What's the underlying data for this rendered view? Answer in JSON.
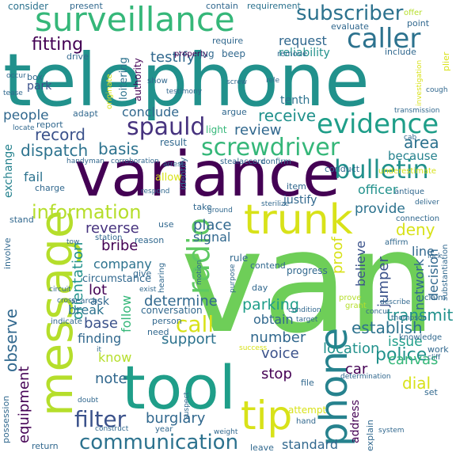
{
  "colors": {
    "purple": "#440154",
    "indigo": "#3b528b",
    "blue": "#31688e",
    "teal": "#21918c",
    "green": "#35b779",
    "lime": "#6ece58",
    "yellow": "#b5de2b",
    "pale": "#d8e219"
  },
  "words": [
    {
      "text": "telephone",
      "color": "#21918c"
    },
    {
      "text": "van",
      "color": "#6ece58"
    },
    {
      "text": "variance",
      "color": "#440154"
    },
    {
      "text": "tool",
      "color": "#1f9e89"
    },
    {
      "text": "message",
      "color": "#b5de2b"
    },
    {
      "text": "surveillance",
      "color": "#35b779"
    },
    {
      "text": "phone",
      "color": "#26828e"
    },
    {
      "text": "trunk",
      "color": "#d8e219"
    },
    {
      "text": "tip",
      "color": "#d8e219"
    },
    {
      "text": "caller",
      "color": "#2c728e"
    },
    {
      "text": "radio",
      "color": "#5ec962"
    },
    {
      "text": "screwdriver",
      "color": "#35b779"
    },
    {
      "text": "evidence",
      "color": "#1f9e89"
    },
    {
      "text": "spauld",
      "color": "#46327e"
    },
    {
      "text": "subscriber",
      "color": "#2c728e"
    },
    {
      "text": "bulletin",
      "color": "#21918c"
    },
    {
      "text": "communication",
      "color": "#2c728e"
    },
    {
      "text": "filter",
      "color": "#3b528b"
    },
    {
      "text": "information",
      "color": "#b5de2b"
    },
    {
      "text": "call",
      "color": "#d8e219"
    },
    {
      "text": "police",
      "color": "#21918c"
    },
    {
      "text": "testify",
      "color": "#31688e"
    },
    {
      "text": "fitting",
      "color": "#440154"
    },
    {
      "text": "record",
      "color": "#3b528b"
    },
    {
      "text": "dispatch",
      "color": "#2c728e"
    },
    {
      "text": "receive",
      "color": "#21918c"
    },
    {
      "text": "area",
      "color": "#2c728e"
    },
    {
      "text": "review",
      "color": "#31688e"
    },
    {
      "text": "people",
      "color": "#31688e"
    },
    {
      "text": "conclude",
      "color": "#31688e"
    },
    {
      "text": "basis",
      "color": "#2c728e"
    },
    {
      "text": "request",
      "color": "#31688e"
    },
    {
      "text": "tenth",
      "color": "#2c728e"
    },
    {
      "text": "because",
      "color": "#26828e"
    },
    {
      "text": "officer",
      "color": "#21918c"
    },
    {
      "text": "provide",
      "color": "#2c728e"
    },
    {
      "text": "deny",
      "color": "#d8e219"
    },
    {
      "text": "reverse",
      "color": "#46327e"
    },
    {
      "text": "bribe",
      "color": "#440154"
    },
    {
      "text": "company",
      "color": "#2c728e"
    },
    {
      "text": "place",
      "color": "#31688e"
    },
    {
      "text": "signal",
      "color": "#31688e"
    },
    {
      "text": "lot",
      "color": "#440154"
    },
    {
      "text": "orientation",
      "color": "#21918c"
    },
    {
      "text": "observe",
      "color": "#31688e"
    },
    {
      "text": "follow",
      "color": "#35b779"
    },
    {
      "text": "determine",
      "color": "#31688e"
    },
    {
      "text": "parking",
      "color": "#1f9e89"
    },
    {
      "text": "transmit",
      "color": "#21918c"
    },
    {
      "text": "establish",
      "color": "#2c728e"
    },
    {
      "text": "network",
      "color": "#31688e"
    },
    {
      "text": "decision",
      "color": "#31688e"
    },
    {
      "text": "jumper",
      "color": "#3b528b"
    },
    {
      "text": "believe",
      "color": "#3b528b"
    },
    {
      "text": "location",
      "color": "#21918c"
    },
    {
      "text": "issue",
      "color": "#1f9e89"
    },
    {
      "text": "canvas",
      "color": "#35b779"
    },
    {
      "text": "car",
      "color": "#440154"
    },
    {
      "text": "dial",
      "color": "#d8e219"
    },
    {
      "text": "burglary",
      "color": "#31688e"
    },
    {
      "text": "support",
      "color": "#2c728e"
    },
    {
      "text": "number",
      "color": "#31688e"
    },
    {
      "text": "voice",
      "color": "#3b528b"
    },
    {
      "text": "stop",
      "color": "#440154"
    },
    {
      "text": "standard",
      "color": "#31688e"
    },
    {
      "text": "note",
      "color": "#31688e"
    },
    {
      "text": "equipment",
      "color": "#440154"
    },
    {
      "text": "base",
      "color": "#3b528b"
    },
    {
      "text": "break",
      "color": "#2c728e"
    },
    {
      "text": "finding",
      "color": "#31688e"
    },
    {
      "text": "know",
      "color": "#b5de2b"
    },
    {
      "text": "ask",
      "color": "#31688e"
    },
    {
      "text": "obtain",
      "color": "#31688e"
    },
    {
      "text": "line",
      "color": "#31688e"
    },
    {
      "text": "exchange",
      "color": "#26828e"
    },
    {
      "text": "fail",
      "color": "#2c728e"
    },
    {
      "text": "proof",
      "color": "#d8e219"
    },
    {
      "text": "address",
      "color": "#440154"
    },
    {
      "text": "possession",
      "color": "#31688e"
    },
    {
      "text": "loitering",
      "color": "#2c728e"
    },
    {
      "text": "authority",
      "color": "#440154"
    },
    {
      "text": "consider",
      "color": "#2c728e"
    },
    {
      "text": "present",
      "color": "#31688e"
    },
    {
      "text": "contain",
      "color": "#31688e"
    },
    {
      "text": "requirement",
      "color": "#2c728e"
    },
    {
      "text": "evaluate",
      "color": "#31688e"
    },
    {
      "text": "offer",
      "color": "#b5de2b"
    },
    {
      "text": "point",
      "color": "#31688e"
    },
    {
      "text": "reliability",
      "color": "#21918c"
    },
    {
      "text": "remove",
      "color": "#31688e"
    },
    {
      "text": "include",
      "color": "#31688e"
    },
    {
      "text": "beep",
      "color": "#31688e"
    },
    {
      "text": "require",
      "color": "#31688e"
    },
    {
      "text": "property",
      "color": "#440154"
    },
    {
      "text": "drive",
      "color": "#31688e"
    },
    {
      "text": "park",
      "color": "#3b528b"
    },
    {
      "text": "box",
      "color": "#31688e"
    },
    {
      "text": "report",
      "color": "#31688e"
    },
    {
      "text": "adapt",
      "color": "#31688e"
    },
    {
      "text": "charge",
      "color": "#31688e"
    },
    {
      "text": "stand",
      "color": "#31688e"
    },
    {
      "text": "result",
      "color": "#31688e"
    },
    {
      "text": "argue",
      "color": "#31688e"
    },
    {
      "text": "light",
      "color": "#35b779"
    },
    {
      "text": "justify",
      "color": "#31688e"
    },
    {
      "text": "item",
      "color": "#31688e"
    },
    {
      "text": "conduct",
      "color": "#31688e"
    },
    {
      "text": "underestimate",
      "color": "#d8e219"
    },
    {
      "text": "antique",
      "color": "#31688e"
    },
    {
      "text": "connection",
      "color": "#31688e"
    },
    {
      "text": "affirm",
      "color": "#31688e"
    },
    {
      "text": "substantiation",
      "color": "#31688e"
    },
    {
      "text": "station",
      "color": "#31688e"
    },
    {
      "text": "circumstance",
      "color": "#31688e"
    },
    {
      "text": "reason",
      "color": "#31688e"
    },
    {
      "text": "rule",
      "color": "#31688e"
    },
    {
      "text": "contend",
      "color": "#31688e"
    },
    {
      "text": "progress",
      "color": "#31688e"
    },
    {
      "text": "conversation",
      "color": "#31688e"
    },
    {
      "text": "person",
      "color": "#31688e"
    },
    {
      "text": "day",
      "color": "#31688e"
    },
    {
      "text": "prove",
      "color": "#b5de2b"
    },
    {
      "text": "grant",
      "color": "#b5de2b"
    },
    {
      "text": "knowledge",
      "color": "#31688e"
    },
    {
      "text": "claim",
      "color": "#31688e"
    },
    {
      "text": "need",
      "color": "#31688e"
    },
    {
      "text": "search",
      "color": "#31688e"
    },
    {
      "text": "indicate",
      "color": "#31688e"
    },
    {
      "text": "give",
      "color": "#31688e"
    },
    {
      "text": "hearing",
      "color": "#31688e"
    },
    {
      "text": "year",
      "color": "#31688e"
    },
    {
      "text": "leave",
      "color": "#31688e"
    },
    {
      "text": "allow",
      "color": "#d8e219"
    },
    {
      "text": "identify",
      "color": "#31688e"
    },
    {
      "text": "take",
      "color": "#31688e"
    },
    {
      "text": "use",
      "color": "#31688e"
    },
    {
      "text": "attempt",
      "color": "#d8e219"
    },
    {
      "text": "hand",
      "color": "#31688e"
    },
    {
      "text": "file",
      "color": "#31688e"
    },
    {
      "text": "explain",
      "color": "#31688e"
    },
    {
      "text": "set",
      "color": "#31688e"
    },
    {
      "text": "work",
      "color": "#31688e"
    },
    {
      "text": "return",
      "color": "#31688e"
    },
    {
      "text": "involve",
      "color": "#31688e"
    },
    {
      "text": "jug",
      "color": "#31688e"
    },
    {
      "text": "show",
      "color": "#31688e"
    },
    {
      "text": "plier",
      "color": "#d8e219"
    },
    {
      "text": "originate",
      "color": "#d8e219"
    },
    {
      "text": "screw",
      "color": "#31688e"
    },
    {
      "text": "testimony",
      "color": "#31688e"
    },
    {
      "text": "steal",
      "color": "#31688e"
    },
    {
      "text": "accord",
      "color": "#31688e"
    },
    {
      "text": "confirm",
      "color": "#31688e"
    },
    {
      "text": "ground",
      "color": "#31688e"
    },
    {
      "text": "respond",
      "color": "#31688e"
    },
    {
      "text": "deliver",
      "color": "#31688e"
    },
    {
      "text": "motion",
      "color": "#31688e"
    },
    {
      "text": "suspect",
      "color": "#31688e"
    },
    {
      "text": "describe",
      "color": "#31688e"
    },
    {
      "text": "target",
      "color": "#31688e"
    },
    {
      "text": "thompson",
      "color": "#31688e"
    },
    {
      "text": "condition",
      "color": "#31688e"
    },
    {
      "text": "system",
      "color": "#31688e"
    },
    {
      "text": "doubt",
      "color": "#31688e"
    },
    {
      "text": "weight",
      "color": "#31688e"
    },
    {
      "text": "success",
      "color": "#d8e219"
    },
    {
      "text": "cough",
      "color": "#31688e"
    },
    {
      "text": "investigation",
      "color": "#d8e219"
    },
    {
      "text": "transmission",
      "color": "#31688e"
    },
    {
      "text": "occur",
      "color": "#31688e"
    },
    {
      "text": "locate",
      "color": "#31688e"
    },
    {
      "text": "handyman",
      "color": "#31688e"
    },
    {
      "text": "corroboration",
      "color": "#31688e"
    },
    {
      "text": "sterilize",
      "color": "#31688e"
    },
    {
      "text": "construct",
      "color": "#31688e"
    },
    {
      "text": "exist",
      "color": "#31688e"
    },
    {
      "text": "purpose",
      "color": "#31688e"
    },
    {
      "text": "determination",
      "color": "#31688e"
    },
    {
      "text": "concur",
      "color": "#31688e"
    },
    {
      "text": "cliff",
      "color": "#31688e"
    },
    {
      "text": "it",
      "color": "#31688e"
    },
    {
      "text": "tow",
      "color": "#31688e"
    },
    {
      "text": "lock",
      "color": "#31688e"
    },
    {
      "text": "circuit",
      "color": "#31688e"
    },
    {
      "text": "cross",
      "color": "#31688e"
    },
    {
      "text": "tease",
      "color": "#31688e"
    },
    {
      "text": "cab",
      "color": "#31688e"
    },
    {
      "text": "rele",
      "color": "#31688e"
    },
    {
      "text": "arrest",
      "color": "#31688e"
    }
  ]
}
